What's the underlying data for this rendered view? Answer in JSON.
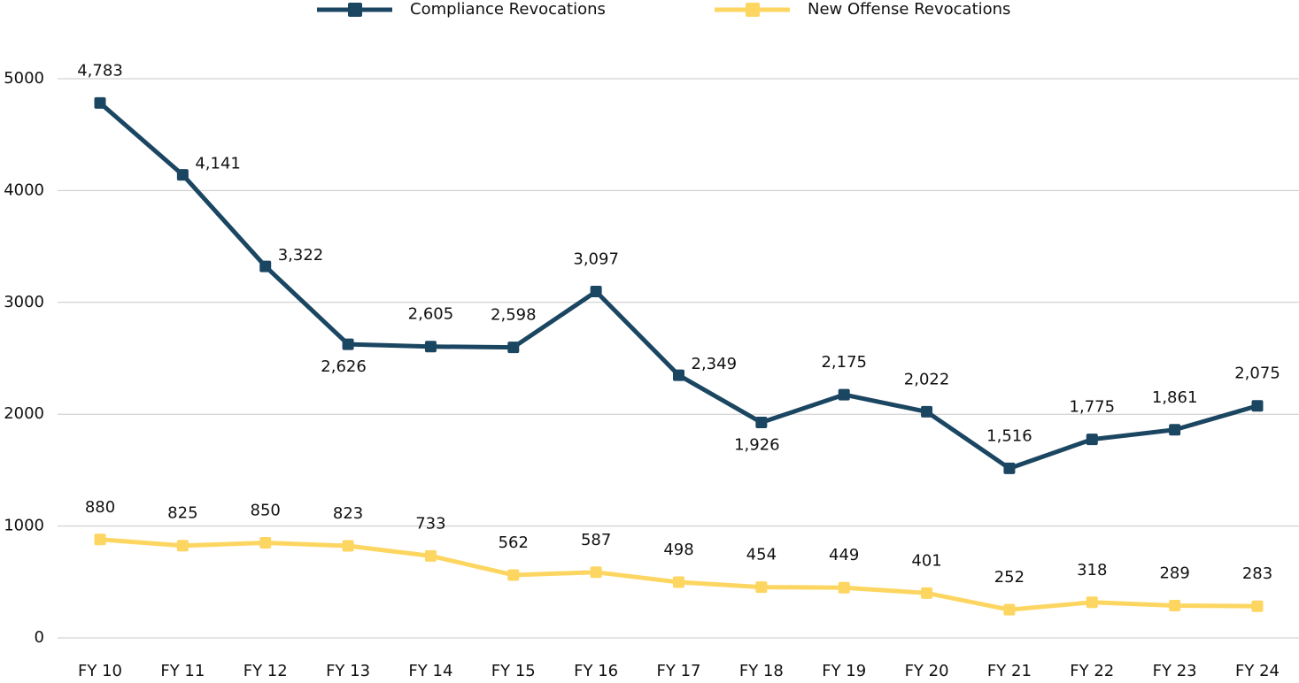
{
  "chart_data": {
    "type": "line",
    "categories": [
      "FY 10",
      "FY 11",
      "FY 12",
      "FY 13",
      "FY 14",
      "FY 15",
      "FY 16",
      "FY 17",
      "FY 18",
      "FY 19",
      "FY 20",
      "FY 21",
      "FY 22",
      "FY 23",
      "FY 24"
    ],
    "series": [
      {
        "name": "Compliance Revocations",
        "color": "#1b4662",
        "values": [
          4783,
          4141,
          3322,
          2626,
          2605,
          2598,
          3097,
          2349,
          1926,
          2175,
          2022,
          1516,
          1775,
          1861,
          2075
        ],
        "value_labels": [
          "4,783",
          "4,141",
          "3,322",
          "2,626",
          "2,605",
          "2,598",
          "3,097",
          "2,349",
          "1,926",
          "2,175",
          "2,022",
          "1,516",
          "1,775",
          "1,861",
          "2,075"
        ]
      },
      {
        "name": "New Offense Revocations",
        "color": "#fdd661",
        "values": [
          880,
          825,
          850,
          823,
          733,
          562,
          587,
          498,
          454,
          449,
          401,
          252,
          318,
          289,
          283
        ]
      }
    ],
    "ylim": [
      0,
      5000
    ],
    "yticks": [
      0,
      1000,
      2000,
      3000,
      4000,
      5000
    ],
    "grid": true,
    "legend": "top"
  }
}
